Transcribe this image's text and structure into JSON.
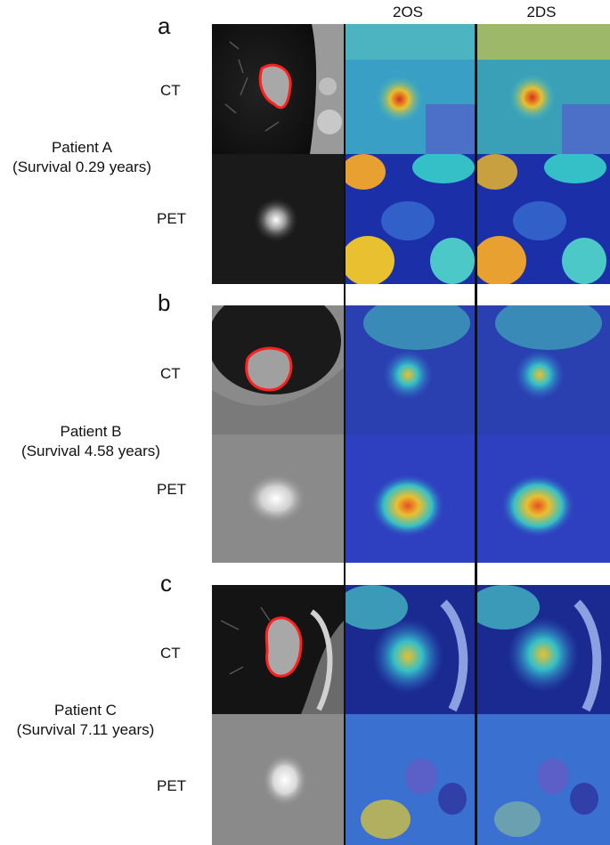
{
  "columns": [
    "",
    "2OS",
    "2DS"
  ],
  "panels": [
    {
      "letter": "a",
      "patient": "Patient A",
      "survival": "(Survival 0.29 years)",
      "rows": [
        "CT",
        "PET"
      ]
    },
    {
      "letter": "b",
      "patient": "Patient B",
      "survival": "(Survival 4.58 years)",
      "rows": [
        "CT",
        "PET"
      ]
    },
    {
      "letter": "c",
      "patient": "Patient C",
      "survival": "(Survival 7.11 years)",
      "rows": [
        "CT",
        "PET"
      ]
    }
  ],
  "colors": {
    "contour": "#ff2020",
    "heat_low": "#1a2fa8",
    "heat_mid": "#35c0c8",
    "heat_high": "#e8c030",
    "heat_peak": "#d83018"
  }
}
